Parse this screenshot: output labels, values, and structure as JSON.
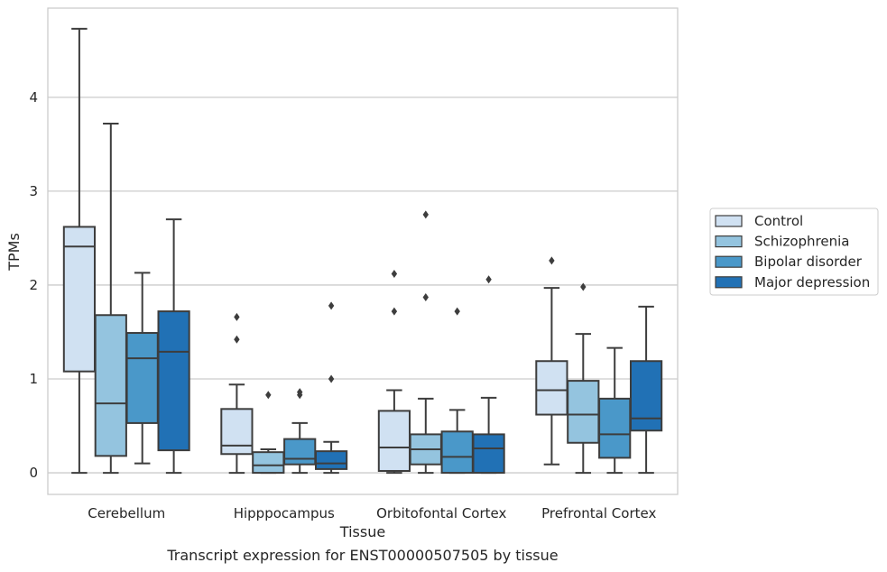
{
  "caption": "Transcript expression for ENST00000507505 by tissue",
  "chart_data": {
    "type": "box",
    "xlabel": "Tissue",
    "ylabel": "TPMs",
    "ylim": [
      -0.23,
      4.95
    ],
    "yticks": [
      0,
      1,
      2,
      3,
      4
    ],
    "grid": "horizontal",
    "legend_position": "right",
    "categories": [
      "Cerebellum",
      "Hipppocampus",
      "Orbitofontal Cortex",
      "Prefrontal Cortex"
    ],
    "series": [
      {
        "name": "Control",
        "color": "#d0e1f2",
        "boxes": [
          {
            "whisker_low": 0.0,
            "q1": 1.08,
            "median": 2.41,
            "q3": 2.62,
            "whisker_high": 4.73,
            "outliers": []
          },
          {
            "whisker_low": 0.0,
            "q1": 0.2,
            "median": 0.29,
            "q3": 0.68,
            "whisker_high": 0.94,
            "outliers": [
              1.42,
              1.66
            ]
          },
          {
            "whisker_low": 0.0,
            "q1": 0.02,
            "median": 0.27,
            "q3": 0.66,
            "whisker_high": 0.88,
            "outliers": [
              1.72,
              2.12
            ]
          },
          {
            "whisker_low": 0.09,
            "q1": 0.62,
            "median": 0.88,
            "q3": 1.19,
            "whisker_high": 1.97,
            "outliers": [
              2.26
            ]
          }
        ]
      },
      {
        "name": "Schizophrenia",
        "color": "#94c4df",
        "boxes": [
          {
            "whisker_low": 0.0,
            "q1": 0.18,
            "median": 0.74,
            "q3": 1.68,
            "whisker_high": 3.72,
            "outliers": []
          },
          {
            "whisker_low": 0.0,
            "q1": 0.0,
            "median": 0.08,
            "q3": 0.22,
            "whisker_high": 0.25,
            "outliers": [
              0.83
            ]
          },
          {
            "whisker_low": 0.0,
            "q1": 0.09,
            "median": 0.25,
            "q3": 0.41,
            "whisker_high": 0.79,
            "outliers": [
              1.87,
              2.75
            ]
          },
          {
            "whisker_low": 0.0,
            "q1": 0.32,
            "median": 0.62,
            "q3": 0.98,
            "whisker_high": 1.48,
            "outliers": [
              1.98
            ]
          }
        ]
      },
      {
        "name": "Bipolar disorder",
        "color": "#4a98c9",
        "boxes": [
          {
            "whisker_low": 0.1,
            "q1": 0.53,
            "median": 1.22,
            "q3": 1.49,
            "whisker_high": 2.13,
            "outliers": []
          },
          {
            "whisker_low": 0.0,
            "q1": 0.09,
            "median": 0.15,
            "q3": 0.36,
            "whisker_high": 0.53,
            "outliers": [
              0.83,
              0.86
            ]
          },
          {
            "whisker_low": 0.0,
            "q1": 0.0,
            "median": 0.17,
            "q3": 0.44,
            "whisker_high": 0.67,
            "outliers": [
              1.72
            ]
          },
          {
            "whisker_low": 0.0,
            "q1": 0.16,
            "median": 0.41,
            "q3": 0.79,
            "whisker_high": 1.33,
            "outliers": []
          }
        ]
      },
      {
        "name": "Major depression",
        "color": "#2171b5",
        "boxes": [
          {
            "whisker_low": 0.0,
            "q1": 0.24,
            "median": 1.29,
            "q3": 1.72,
            "whisker_high": 2.7,
            "outliers": []
          },
          {
            "whisker_low": 0.0,
            "q1": 0.04,
            "median": 0.1,
            "q3": 0.23,
            "whisker_high": 0.33,
            "outliers": [
              1.0,
              1.78
            ]
          },
          {
            "whisker_low": 0.0,
            "q1": 0.0,
            "median": 0.26,
            "q3": 0.41,
            "whisker_high": 0.8,
            "outliers": [
              2.06
            ]
          },
          {
            "whisker_low": 0.0,
            "q1": 0.45,
            "median": 0.58,
            "q3": 1.19,
            "whisker_high": 1.77,
            "outliers": []
          }
        ]
      }
    ]
  }
}
